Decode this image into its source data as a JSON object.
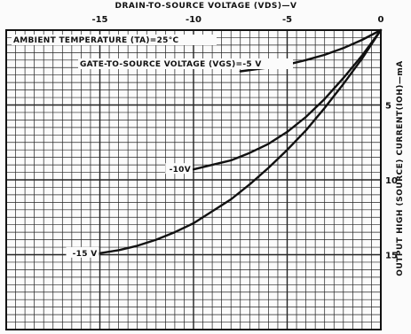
{
  "chart_data": {
    "type": "line",
    "title": "",
    "xlabel": "DRAIN-TO-SOURCE VOLTAGE (VDS)—V",
    "ylabel": "OUTPUT HIGH (SOURCE) CURRENT(IOH)—mA",
    "xlim": [
      -20,
      0
    ],
    "ylim": [
      0,
      20
    ],
    "x_ticks": [
      "-15",
      "-10",
      "-5",
      "0"
    ],
    "y_ticks": [
      "5",
      "10",
      "15"
    ],
    "grid": true,
    "annotations": {
      "ambient": "AMBIENT TEMPERATURE (TA)=25°C",
      "gate": "GATE-TO-SOURCE VOLTAGE (VGS)=-5 V"
    },
    "series": [
      {
        "name": "-5 V",
        "x": [
          0,
          -1,
          -2,
          -3,
          -4,
          -5,
          -6,
          -7.5
        ],
        "y": [
          0,
          0.65,
          1.2,
          1.65,
          2.0,
          2.3,
          2.5,
          2.75
        ]
      },
      {
        "name": "-10V",
        "x": [
          0,
          -1,
          -2,
          -3,
          -4,
          -5,
          -6,
          -7,
          -8,
          -9,
          -10
        ],
        "y": [
          0,
          1.7,
          3.2,
          4.6,
          5.8,
          6.8,
          7.6,
          8.2,
          8.7,
          9.0,
          9.3
        ]
      },
      {
        "name": "-15 V",
        "x": [
          0,
          -1,
          -2,
          -3,
          -4,
          -5,
          -6,
          -7,
          -8,
          -9,
          -10,
          -11,
          -12,
          -13,
          -14,
          -15
        ],
        "y": [
          0,
          1.9,
          3.6,
          5.2,
          6.7,
          8.0,
          9.2,
          10.3,
          11.3,
          12.1,
          12.9,
          13.5,
          14.0,
          14.4,
          14.7,
          14.9
        ]
      }
    ]
  }
}
